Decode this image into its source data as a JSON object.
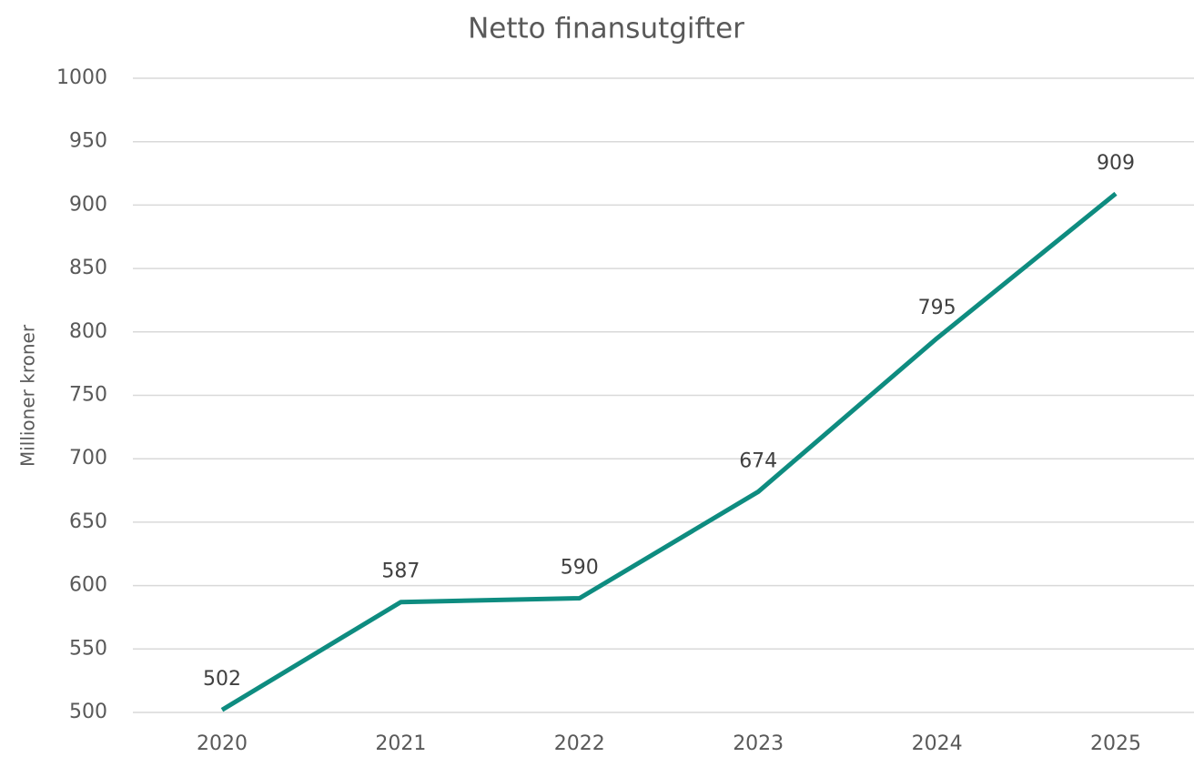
{
  "chart_data": {
    "type": "line",
    "title": "Netto finansutgifter",
    "y_label": "Millioner kroner",
    "categories": [
      "2020",
      "2021",
      "2022",
      "2023",
      "2024",
      "2025"
    ],
    "series": [
      {
        "name": "Netto finansutgifter",
        "color": "#0e8c80",
        "values": [
          502,
          587,
          590,
          674,
          795,
          909
        ]
      }
    ],
    "ylim": [
      500,
      1000
    ],
    "yticks": [
      500,
      550,
      600,
      650,
      700,
      750,
      800,
      850,
      900,
      950,
      1000
    ],
    "grid": true
  }
}
